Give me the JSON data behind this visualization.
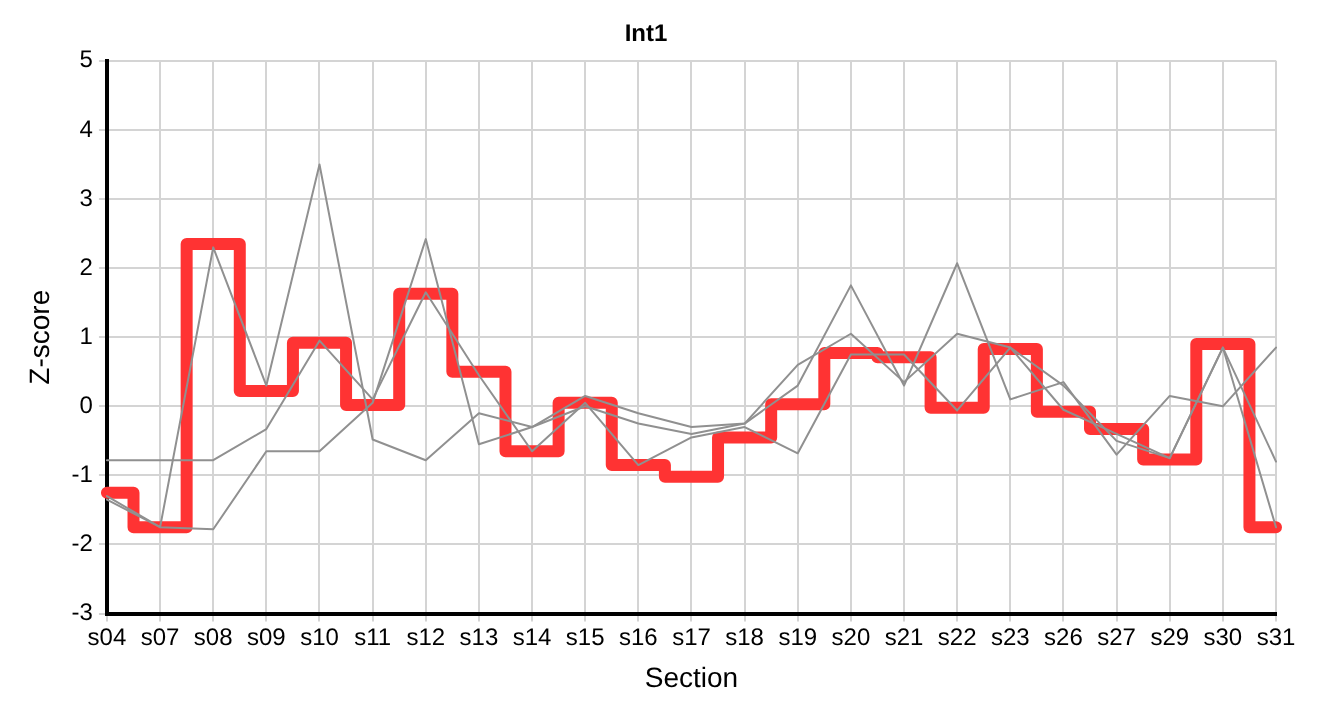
{
  "chart_data": {
    "type": "line",
    "title": "Int1",
    "xlabel": "Section",
    "ylabel": "Z-score",
    "categories": [
      "s04",
      "s07",
      "s08",
      "s09",
      "s10",
      "s11",
      "s12",
      "s13",
      "s14",
      "s15",
      "s16",
      "s17",
      "s18",
      "s19",
      "s20",
      "s21",
      "s22",
      "s23",
      "s26",
      "s27",
      "s29",
      "s30",
      "s31"
    ],
    "series": [
      {
        "color": "#909090",
        "values": [
          -1.3,
          -1.75,
          2.3,
          0.3,
          3.5,
          -0.48,
          -0.78,
          -0.1,
          -0.3,
          0.15,
          -0.1,
          -0.3,
          -0.25,
          0.6,
          1.05,
          0.35,
          1.05,
          0.85,
          0.3,
          -0.5,
          -0.75,
          0.85,
          -0.8
        ]
      },
      {
        "color": "#909090",
        "values": [
          -1.35,
          -1.75,
          -1.78,
          -0.65,
          -0.65,
          0.05,
          2.42,
          -0.55,
          -0.3,
          0.0,
          -0.25,
          -0.4,
          -0.25,
          0.3,
          1.75,
          0.3,
          2.07,
          0.1,
          0.35,
          -0.7,
          0.15,
          0.0,
          0.85
        ]
      },
      {
        "color": "#909090",
        "values": [
          -0.78,
          -0.78,
          -0.78,
          -0.33,
          0.95,
          0.1,
          1.65,
          0.45,
          -0.65,
          0.05,
          -0.85,
          -0.45,
          -0.3,
          -0.68,
          0.75,
          0.75,
          -0.06,
          0.85,
          -0.05,
          -0.4,
          -0.75,
          0.85,
          -1.75
        ]
      },
      {
        "type": "step",
        "color": "#ff3333",
        "values": [
          -1.25,
          -1.75,
          2.35,
          0.22,
          0.92,
          0.02,
          1.63,
          0.5,
          -0.65,
          0.05,
          -0.85,
          -1.02,
          -0.45,
          0.03,
          0.77,
          0.71,
          -0.02,
          0.83,
          -0.08,
          -0.33,
          -0.77,
          0.9,
          -1.75
        ]
      }
    ],
    "ylim": [
      -3,
      5
    ],
    "yticks": [
      -3,
      -2,
      -1,
      0,
      1,
      2,
      3,
      4,
      5
    ],
    "grid": true,
    "legend": false,
    "marker": "none",
    "line_style": "solid"
  }
}
